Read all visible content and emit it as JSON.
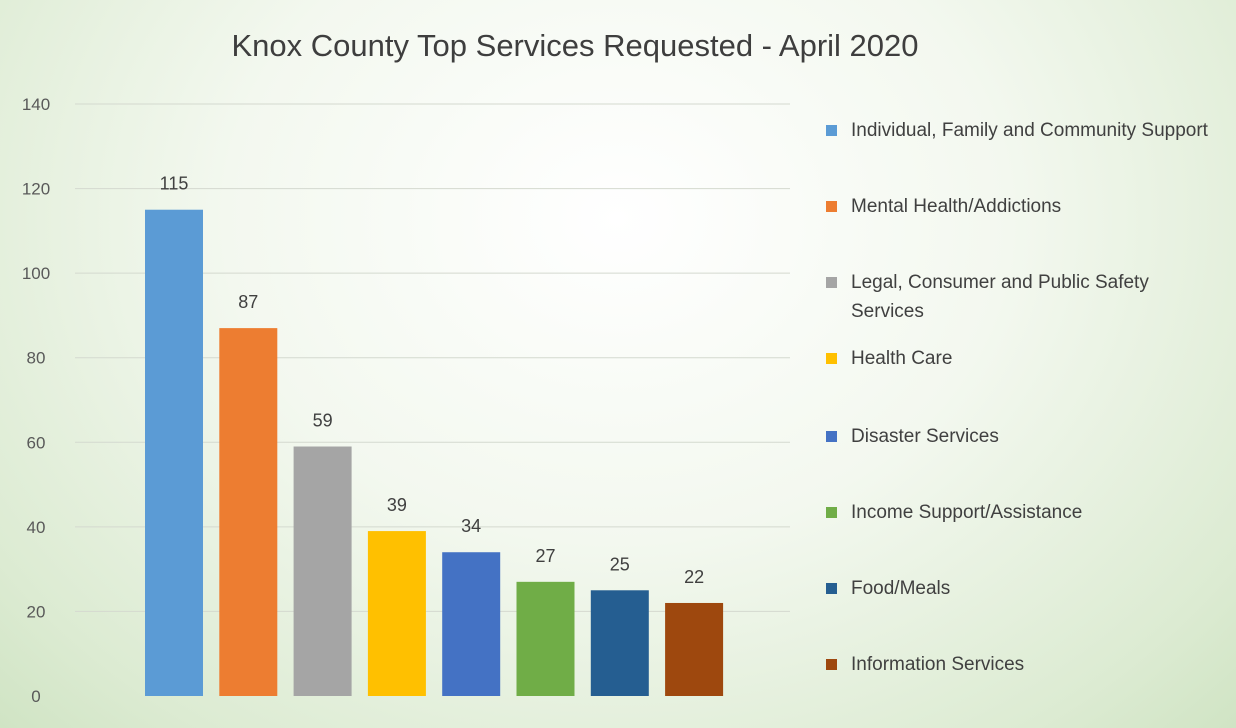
{
  "chart_data": {
    "type": "bar",
    "title": "Knox County Top Services Requested - April 2020",
    "xlabel": "",
    "ylabel": "",
    "ylim": [
      0,
      140
    ],
    "yticks": [
      "0",
      "20",
      "40",
      "60",
      "80",
      "100",
      "120",
      "140"
    ],
    "grid": true,
    "legend_position": "right",
    "categories": [
      "Individual, Family and Community Support",
      "Mental Health/Addictions",
      "Legal, Consumer and Public Safety Services",
      "Health Care",
      "Disaster Services",
      "Income Support/Assistance",
      "Food/Meals",
      "Information Services"
    ],
    "values": [
      115,
      87,
      59,
      39,
      34,
      27,
      25,
      22
    ],
    "data_labels": [
      "115",
      "87",
      "59",
      "39",
      "34",
      "27",
      "25",
      "22"
    ],
    "colors": [
      "#5b9bd5",
      "#ed7d31",
      "#a5a5a5",
      "#ffc000",
      "#4472c4",
      "#70ad47",
      "#255e91",
      "#9e480e"
    ]
  }
}
